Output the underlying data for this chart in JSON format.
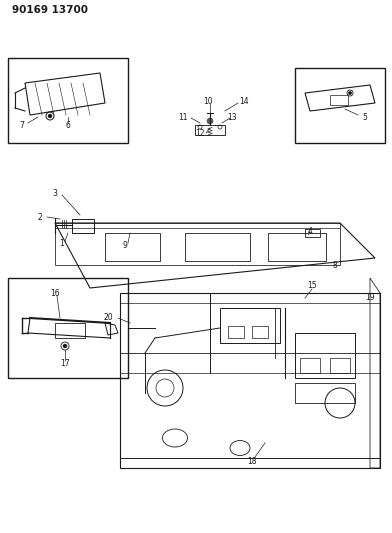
{
  "title": "90169 13700",
  "bg_color": "#ffffff",
  "line_color": "#1a1a1a",
  "fig_width": 3.92,
  "fig_height": 5.33,
  "dpi": 100
}
